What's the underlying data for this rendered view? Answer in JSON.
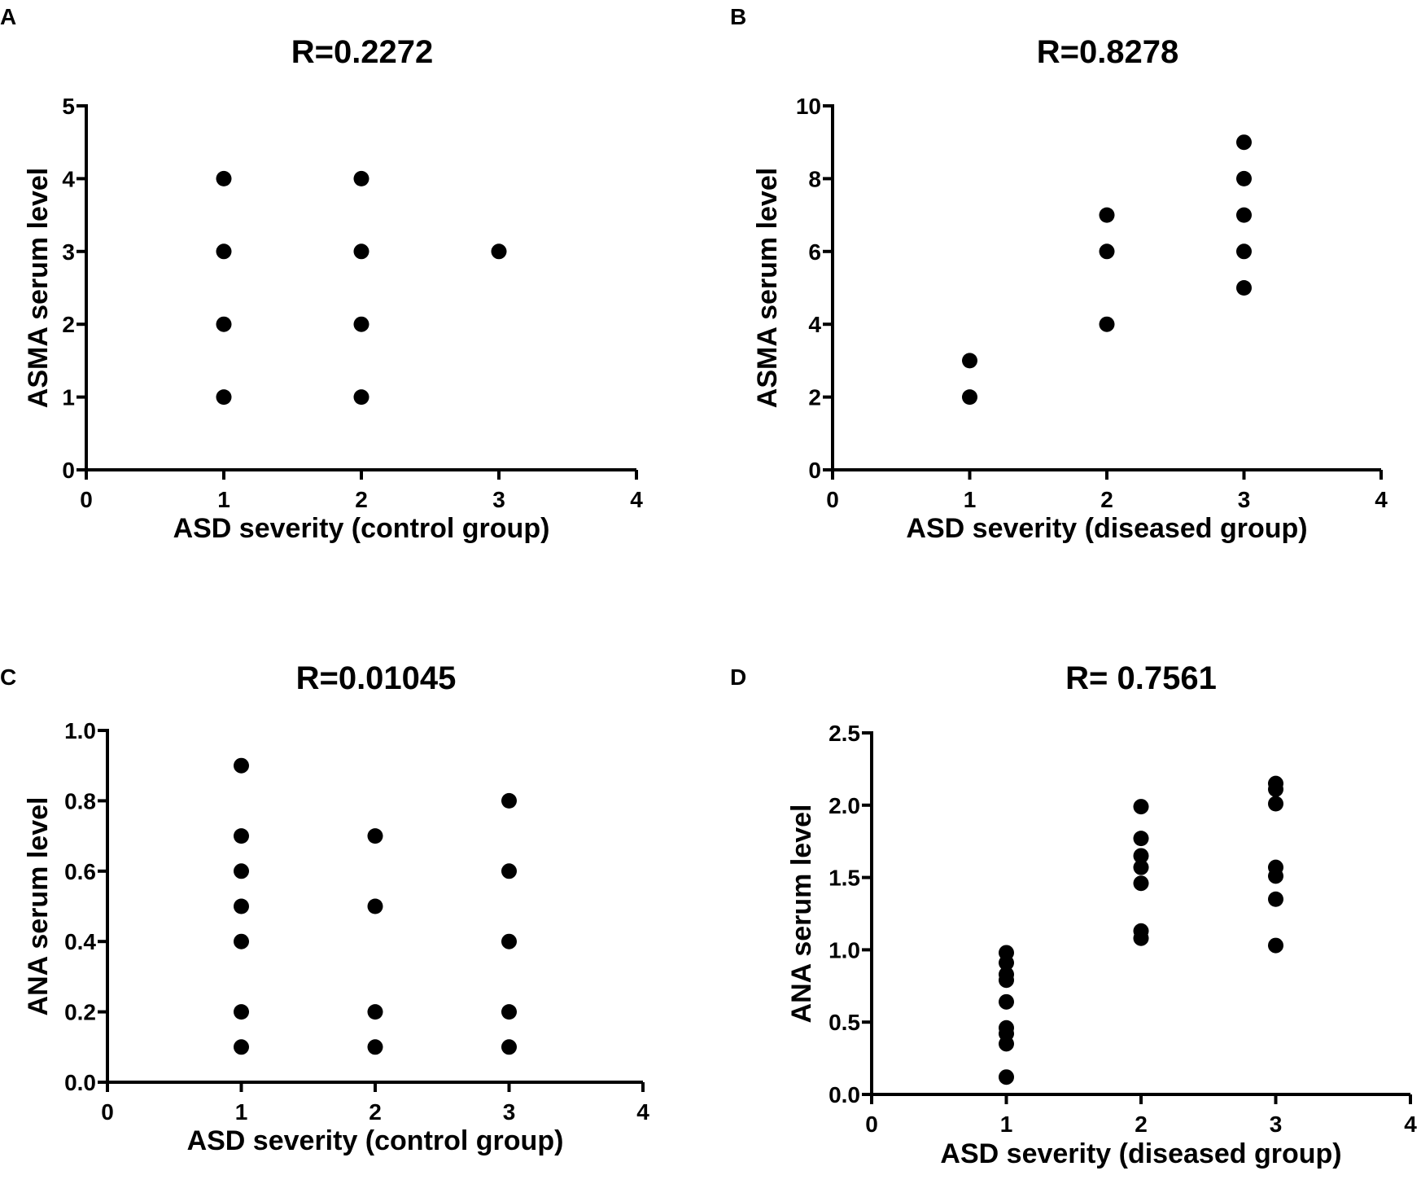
{
  "chart_data": [
    {
      "type": "scatter",
      "panel": "A",
      "title": "R=0.2272",
      "xlabel": "ASD severity  (control group)",
      "ylabel": "ASMA serum level",
      "xlim": [
        0,
        4
      ],
      "ylim": [
        0,
        5
      ],
      "xticks": [
        "0",
        "1",
        "2",
        "3",
        "4"
      ],
      "yticks": [
        "0",
        "1",
        "2",
        "3",
        "4",
        "5"
      ],
      "points": [
        [
          1,
          1
        ],
        [
          1,
          2
        ],
        [
          1,
          3
        ],
        [
          1,
          4
        ],
        [
          2,
          1
        ],
        [
          2,
          2
        ],
        [
          2,
          3
        ],
        [
          2,
          4
        ],
        [
          3,
          3
        ]
      ]
    },
    {
      "type": "scatter",
      "panel": "B",
      "title": "R=0.8278",
      "xlabel": "ASD severity (diseased group)",
      "ylabel": "ASMA serum level",
      "xlim": [
        0,
        4
      ],
      "ylim": [
        0,
        10
      ],
      "xticks": [
        "0",
        "1",
        "2",
        "3",
        "4"
      ],
      "yticks": [
        "0",
        "2",
        "4",
        "6",
        "8",
        "10"
      ],
      "points": [
        [
          1,
          2
        ],
        [
          1,
          3
        ],
        [
          2,
          4
        ],
        [
          2,
          6
        ],
        [
          2,
          7
        ],
        [
          3,
          5
        ],
        [
          3,
          6
        ],
        [
          3,
          7
        ],
        [
          3,
          8
        ],
        [
          3,
          9
        ]
      ]
    },
    {
      "type": "scatter",
      "panel": "C",
      "title": "R=0.01045",
      "xlabel": "ASD severity  (control group)",
      "ylabel": "ANA serum level",
      "xlim": [
        0,
        4
      ],
      "ylim": [
        0,
        1.0
      ],
      "xticks": [
        "0",
        "1",
        "2",
        "3",
        "4"
      ],
      "yticks": [
        "0.0",
        "0.2",
        "0.4",
        "0.6",
        "0.8",
        "1.0"
      ],
      "points": [
        [
          1,
          0.1
        ],
        [
          1,
          0.2
        ],
        [
          1,
          0.4
        ],
        [
          1,
          0.5
        ],
        [
          1,
          0.6
        ],
        [
          1,
          0.7
        ],
        [
          1,
          0.9
        ],
        [
          2,
          0.1
        ],
        [
          2,
          0.2
        ],
        [
          2,
          0.5
        ],
        [
          2,
          0.7
        ],
        [
          3,
          0.1
        ],
        [
          3,
          0.2
        ],
        [
          3,
          0.4
        ],
        [
          3,
          0.6
        ],
        [
          3,
          0.8
        ]
      ]
    },
    {
      "type": "scatter",
      "panel": "D",
      "title": "R= 0.7561",
      "xlabel": "ASD severity (diseased group)",
      "ylabel": "ANA serum level",
      "xlim": [
        0,
        4
      ],
      "ylim": [
        0,
        2.5
      ],
      "xticks": [
        "0",
        "1",
        "2",
        "3",
        "4"
      ],
      "yticks": [
        "0.0",
        "0.5",
        "1.0",
        "1.5",
        "2.0",
        "2.5"
      ],
      "points": [
        [
          1,
          0.12
        ],
        [
          1,
          0.35
        ],
        [
          1,
          0.42
        ],
        [
          1,
          0.46
        ],
        [
          1,
          0.64
        ],
        [
          1,
          0.79
        ],
        [
          1,
          0.83
        ],
        [
          1,
          0.91
        ],
        [
          1,
          0.98
        ],
        [
          2,
          1.08
        ],
        [
          2,
          1.13
        ],
        [
          2,
          1.46
        ],
        [
          2,
          1.57
        ],
        [
          2,
          1.65
        ],
        [
          2,
          1.77
        ],
        [
          2,
          1.99
        ],
        [
          3,
          1.03
        ],
        [
          3,
          1.35
        ],
        [
          3,
          1.51
        ],
        [
          3,
          1.57
        ],
        [
          3,
          2.01
        ],
        [
          3,
          2.11
        ],
        [
          3,
          2.15
        ]
      ]
    }
  ]
}
